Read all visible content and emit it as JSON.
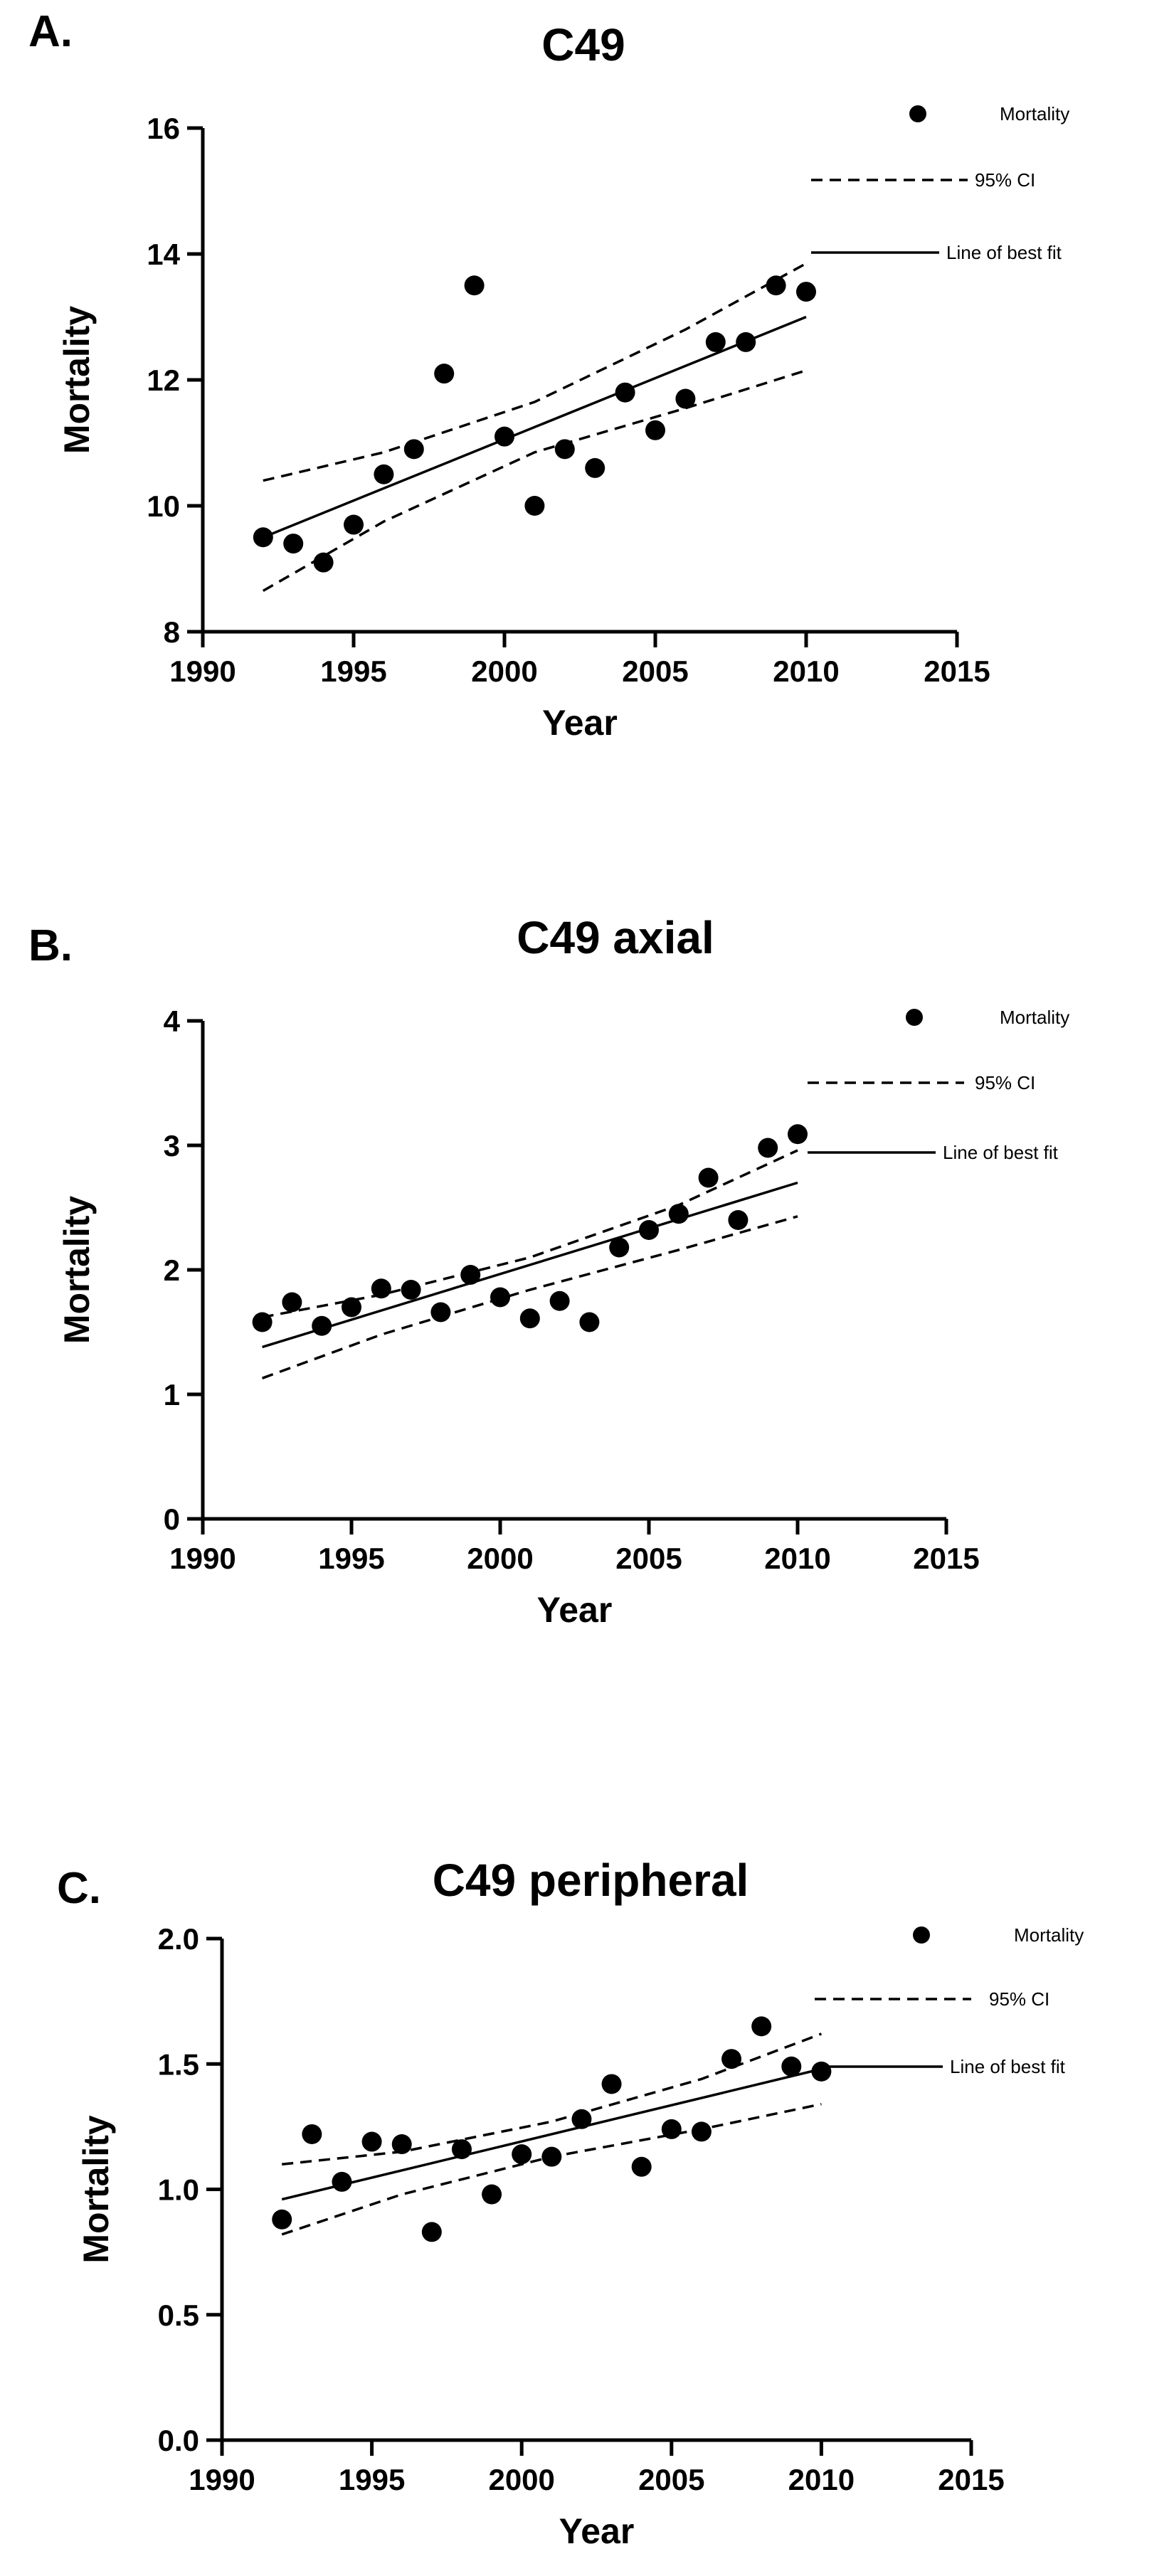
{
  "chart_data": [
    {
      "type": "scatter",
      "panel_label": "A.",
      "title": "C49",
      "xlabel": "Year",
      "ylabel": "Mortality",
      "xlim": [
        1990,
        2015
      ],
      "ylim": [
        8,
        16
      ],
      "xticks": [
        1990,
        1995,
        2000,
        2005,
        2010,
        2015
      ],
      "yticks": [
        8,
        10,
        12,
        14,
        16
      ],
      "ytick_labels": [
        "8",
        "10",
        "12",
        "14",
        "16"
      ],
      "legend": {
        "points": "Mortality",
        "ci": "95% CI",
        "fit": "Line of best fit",
        "position": "top-right"
      },
      "x": [
        1992,
        1993,
        1994,
        1995,
        1996,
        1997,
        1998,
        1999,
        2000,
        2001,
        2002,
        2003,
        2004,
        2005,
        2006,
        2007,
        2008,
        2009,
        2010
      ],
      "y": [
        9.5,
        9.4,
        9.1,
        9.7,
        10.5,
        10.9,
        12.1,
        13.5,
        11.1,
        10.0,
        10.9,
        10.6,
        11.8,
        11.2,
        11.7,
        12.6,
        12.6,
        13.5,
        13.4
      ],
      "fit": {
        "x": [
          1992,
          2010
        ],
        "y": [
          9.5,
          13.0
        ]
      },
      "ci_upper": {
        "x": [
          1992,
          1996,
          2001,
          2006,
          2010
        ],
        "y": [
          10.4,
          10.85,
          11.65,
          12.8,
          13.85
        ]
      },
      "ci_lower": {
        "x": [
          1992,
          1996,
          2001,
          2006,
          2010
        ],
        "y": [
          8.65,
          9.75,
          10.85,
          11.55,
          12.15
        ]
      }
    },
    {
      "type": "scatter",
      "panel_label": "B.",
      "title": "C49 axial",
      "xlabel": "Year",
      "ylabel": "Mortality",
      "xlim": [
        1990,
        2015
      ],
      "ylim": [
        0,
        4
      ],
      "xticks": [
        1990,
        1995,
        2000,
        2005,
        2010,
        2015
      ],
      "yticks": [
        0,
        1,
        2,
        3,
        4
      ],
      "ytick_labels": [
        "0",
        "1",
        "2",
        "3",
        "4"
      ],
      "legend": {
        "points": "Mortality",
        "ci": "95% CI",
        "fit": "Line of best fit",
        "position": "top-right"
      },
      "x": [
        1992,
        1993,
        1994,
        1995,
        1996,
        1997,
        1998,
        1999,
        2000,
        2001,
        2002,
        2003,
        2004,
        2005,
        2006,
        2007,
        2008,
        2009,
        2010
      ],
      "y": [
        1.58,
        1.74,
        1.55,
        1.7,
        1.85,
        1.84,
        1.66,
        1.96,
        1.78,
        1.61,
        1.75,
        1.58,
        2.18,
        2.32,
        2.45,
        2.74,
        2.4,
        2.98,
        3.09
      ],
      "fit": {
        "x": [
          1992,
          2010
        ],
        "y": [
          1.38,
          2.7
        ]
      },
      "ci_upper": {
        "x": [
          1992,
          1996,
          2001,
          2006,
          2010
        ],
        "y": [
          1.62,
          1.8,
          2.1,
          2.52,
          2.96
        ]
      },
      "ci_lower": {
        "x": [
          1992,
          1996,
          2001,
          2006,
          2010
        ],
        "y": [
          1.13,
          1.48,
          1.84,
          2.16,
          2.43
        ]
      }
    },
    {
      "type": "scatter",
      "panel_label": "C.",
      "title": "C49 peripheral",
      "xlabel": "Year",
      "ylabel": "Mortality",
      "xlim": [
        1990,
        2015
      ],
      "ylim": [
        0,
        2
      ],
      "xticks": [
        1990,
        1995,
        2000,
        2005,
        2010,
        2015
      ],
      "yticks": [
        0,
        0.5,
        1,
        1.5,
        2
      ],
      "ytick_labels": [
        "0.0",
        "0.5",
        "1.0",
        "1.5",
        "2.0"
      ],
      "legend": {
        "points": "Mortality",
        "ci": "95% CI",
        "fit": "Line of best fit",
        "position": "top-right"
      },
      "x": [
        1992,
        1993,
        1994,
        1995,
        1996,
        1997,
        1998,
        1999,
        2000,
        2001,
        2002,
        2003,
        2004,
        2005,
        2006,
        2007,
        2008,
        2009,
        2010
      ],
      "y": [
        0.88,
        1.22,
        1.03,
        1.19,
        1.18,
        0.83,
        1.16,
        0.98,
        1.14,
        1.13,
        1.28,
        1.42,
        1.09,
        1.24,
        1.23,
        1.52,
        1.65,
        1.49,
        1.47
      ],
      "fit": {
        "x": [
          1992,
          2010
        ],
        "y": [
          0.96,
          1.48
        ]
      },
      "ci_upper": {
        "x": [
          1992,
          1996,
          2001,
          2006,
          2010
        ],
        "y": [
          1.1,
          1.15,
          1.27,
          1.44,
          1.62
        ]
      },
      "ci_lower": {
        "x": [
          1992,
          1996,
          2001,
          2006,
          2010
        ],
        "y": [
          0.82,
          0.98,
          1.13,
          1.24,
          1.34
        ]
      }
    }
  ]
}
